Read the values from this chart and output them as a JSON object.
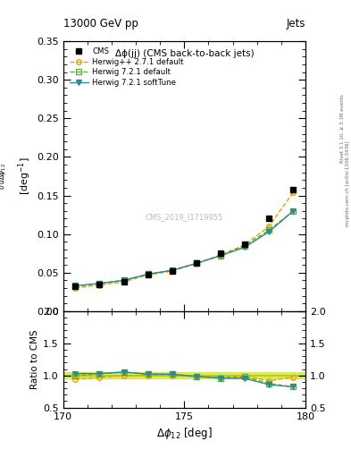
{
  "title_top": "13000 GeV pp",
  "title_right": "Jets",
  "plot_title": "Δϕ(jj) (CMS back-to-back jets)",
  "ylabel_main_line1": "$\\frac{1}{\\bar{\\sigma}}\\frac{d\\sigma}{d\\Delta\\phi_{12}}$",
  "ylabel_main_line2": "[deg$^{-1}$]",
  "ylabel_ratio": "Ratio to CMS",
  "xlabel": "$\\Delta\\phi_{12}$ [deg]",
  "right_label": "Rivet 3.1.10, ≥ 3.1M events",
  "right_label2": "mcplots.cern.ch [arXiv:1306.3436]",
  "watermark": "CMS_2019_I1719955",
  "x_cms": [
    170.5,
    171.5,
    172.5,
    173.5,
    174.5,
    175.5,
    176.5,
    177.5,
    178.5,
    179.5
  ],
  "y_cms": [
    0.032,
    0.035,
    0.038,
    0.047,
    0.052,
    0.063,
    0.075,
    0.087,
    0.12,
    0.158
  ],
  "y_herwig_pp": [
    0.03,
    0.034,
    0.038,
    0.047,
    0.052,
    0.062,
    0.073,
    0.086,
    0.11,
    0.154
  ],
  "y_herwig721_default": [
    0.032,
    0.036,
    0.04,
    0.048,
    0.053,
    0.062,
    0.072,
    0.085,
    0.105,
    0.13
  ],
  "y_herwig721_soft": [
    0.033,
    0.036,
    0.04,
    0.048,
    0.053,
    0.062,
    0.072,
    0.083,
    0.103,
    0.13
  ],
  "ratio_herwig_pp": [
    0.94,
    0.97,
    1.0,
    1.0,
    1.0,
    0.984,
    0.973,
    0.989,
    0.917,
    0.975
  ],
  "ratio_herwig721_default": [
    1.0,
    1.029,
    1.053,
    1.021,
    1.019,
    0.984,
    0.96,
    0.977,
    0.875,
    0.823
  ],
  "ratio_herwig721_soft": [
    1.031,
    1.029,
    1.053,
    1.021,
    1.019,
    0.984,
    0.96,
    0.954,
    0.858,
    0.823
  ],
  "color_cms": "#000000",
  "color_herwig_pp": "#e8a000",
  "color_herwig721_default": "#6aaa3a",
  "color_herwig721_soft": "#2e8b8b",
  "xlim": [
    170.0,
    180.0
  ],
  "ylim_main": [
    0.0,
    0.35
  ],
  "ylim_ratio": [
    0.5,
    2.0
  ]
}
